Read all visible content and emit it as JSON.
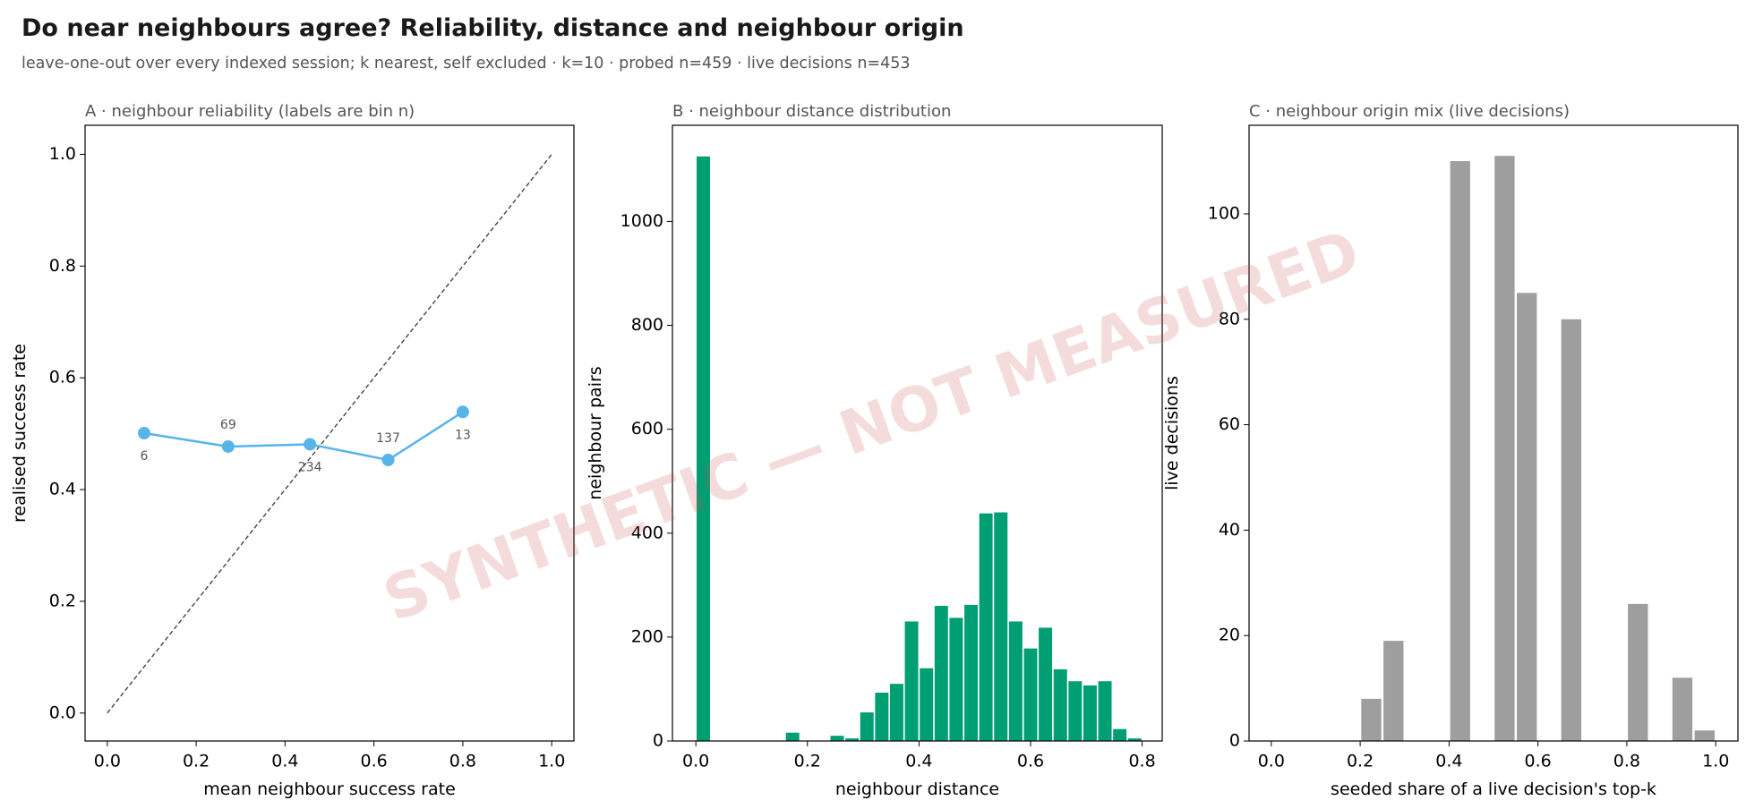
{
  "header": {
    "title": "Do near neighbours agree? Reliability, distance and neighbour origin",
    "subtitle": "leave-one-out over every indexed session; k nearest, self excluded · k=10 · probed n=459 · live decisions n=453"
  },
  "watermark": "SYNTHETIC — NOT MEASURED",
  "chart_data": [
    {
      "type": "line",
      "title": "A · neighbour reliability (labels are bin n)",
      "xlabel": "mean neighbour success rate",
      "ylabel": "realised success rate",
      "x": [
        0.083,
        0.272,
        0.456,
        0.632,
        0.8
      ],
      "series": [
        {
          "color": "#56b4e9",
          "values": [
            0.501,
            0.477,
            0.481,
            0.453,
            0.539
          ],
          "bin_n": [
            "6",
            "69",
            "234",
            "137",
            "13"
          ]
        }
      ],
      "diagonal": true,
      "xlim": [
        -0.05,
        1.05
      ],
      "ylim": [
        -0.05,
        1.052
      ],
      "xticks": [
        {
          "value": 0,
          "label": "0.0"
        },
        {
          "value": 0.2,
          "label": "0.2"
        },
        {
          "value": 0.4,
          "label": "0.4"
        },
        {
          "value": 0.6,
          "label": "0.6"
        },
        {
          "value": 0.8,
          "label": "0.8"
        },
        {
          "value": 1,
          "label": "1.0"
        }
      ],
      "yticks": [
        {
          "value": 0,
          "label": "0.0"
        },
        {
          "value": 0.2,
          "label": "0.2"
        },
        {
          "value": 0.4,
          "label": "0.4"
        },
        {
          "value": 0.6,
          "label": "0.6"
        },
        {
          "value": 0.8,
          "label": "0.8"
        },
        {
          "value": 1,
          "label": "1.0"
        }
      ]
    },
    {
      "type": "histogram",
      "title": "B · neighbour distance distribution",
      "xlabel": "neighbour distance",
      "ylabel": "neighbour pairs",
      "color": "#009e73",
      "bins": [
        0,
        0.0267,
        0.0533,
        0.08,
        0.1067,
        0.1333,
        0.16,
        0.1867,
        0.2133,
        0.24,
        0.2667,
        0.2933,
        0.32,
        0.3467,
        0.3733,
        0.4,
        0.4267,
        0.4533,
        0.48,
        0.5067,
        0.5333,
        0.56,
        0.5867,
        0.6133,
        0.64,
        0.6667,
        0.6933,
        0.72,
        0.7467,
        0.7733,
        0.8
      ],
      "values": [
        1125,
        0,
        0,
        0,
        0,
        0,
        16,
        0,
        0,
        10,
        5,
        55,
        93,
        110,
        230,
        140,
        260,
        237,
        262,
        438,
        440,
        230,
        178,
        218,
        138,
        115,
        107,
        115,
        23,
        5
      ],
      "xlim": [
        -0.042,
        0.836
      ],
      "ylim": [
        0,
        1185
      ],
      "xticks": [
        {
          "value": 0,
          "label": "0.0"
        },
        {
          "value": 0.2,
          "label": "0.2"
        },
        {
          "value": 0.4,
          "label": "0.4"
        },
        {
          "value": 0.6,
          "label": "0.6"
        },
        {
          "value": 0.8,
          "label": "0.8"
        }
      ],
      "yticks": [
        0,
        200,
        400,
        600,
        800,
        1000
      ]
    },
    {
      "type": "histogram",
      "title": "C · neighbour origin mix (live decisions)",
      "xlabel": "seeded share of a live decision's top-k",
      "ylabel": "live decisions",
      "color": "#9e9e9e",
      "bins": [
        0,
        0.05,
        0.1,
        0.15,
        0.2,
        0.25,
        0.3,
        0.35,
        0.4,
        0.45,
        0.5,
        0.55,
        0.6,
        0.65,
        0.7,
        0.75,
        0.8,
        0.85,
        0.9,
        0.95,
        1
      ],
      "values": [
        0,
        0,
        0,
        0,
        8,
        19,
        0,
        0,
        110,
        0,
        111,
        85,
        0,
        80,
        0,
        0,
        26,
        0,
        12,
        2
      ],
      "xlim": [
        -0.05,
        1.05
      ],
      "ylim": [
        0,
        116.8
      ],
      "xticks": [
        {
          "value": 0,
          "label": "0.0"
        },
        {
          "value": 0.2,
          "label": "0.2"
        },
        {
          "value": 0.4,
          "label": "0.4"
        },
        {
          "value": 0.6,
          "label": "0.6"
        },
        {
          "value": 0.8,
          "label": "0.8"
        },
        {
          "value": 1,
          "label": "1.0"
        }
      ],
      "yticks": [
        0,
        20,
        40,
        60,
        80,
        100
      ]
    }
  ]
}
